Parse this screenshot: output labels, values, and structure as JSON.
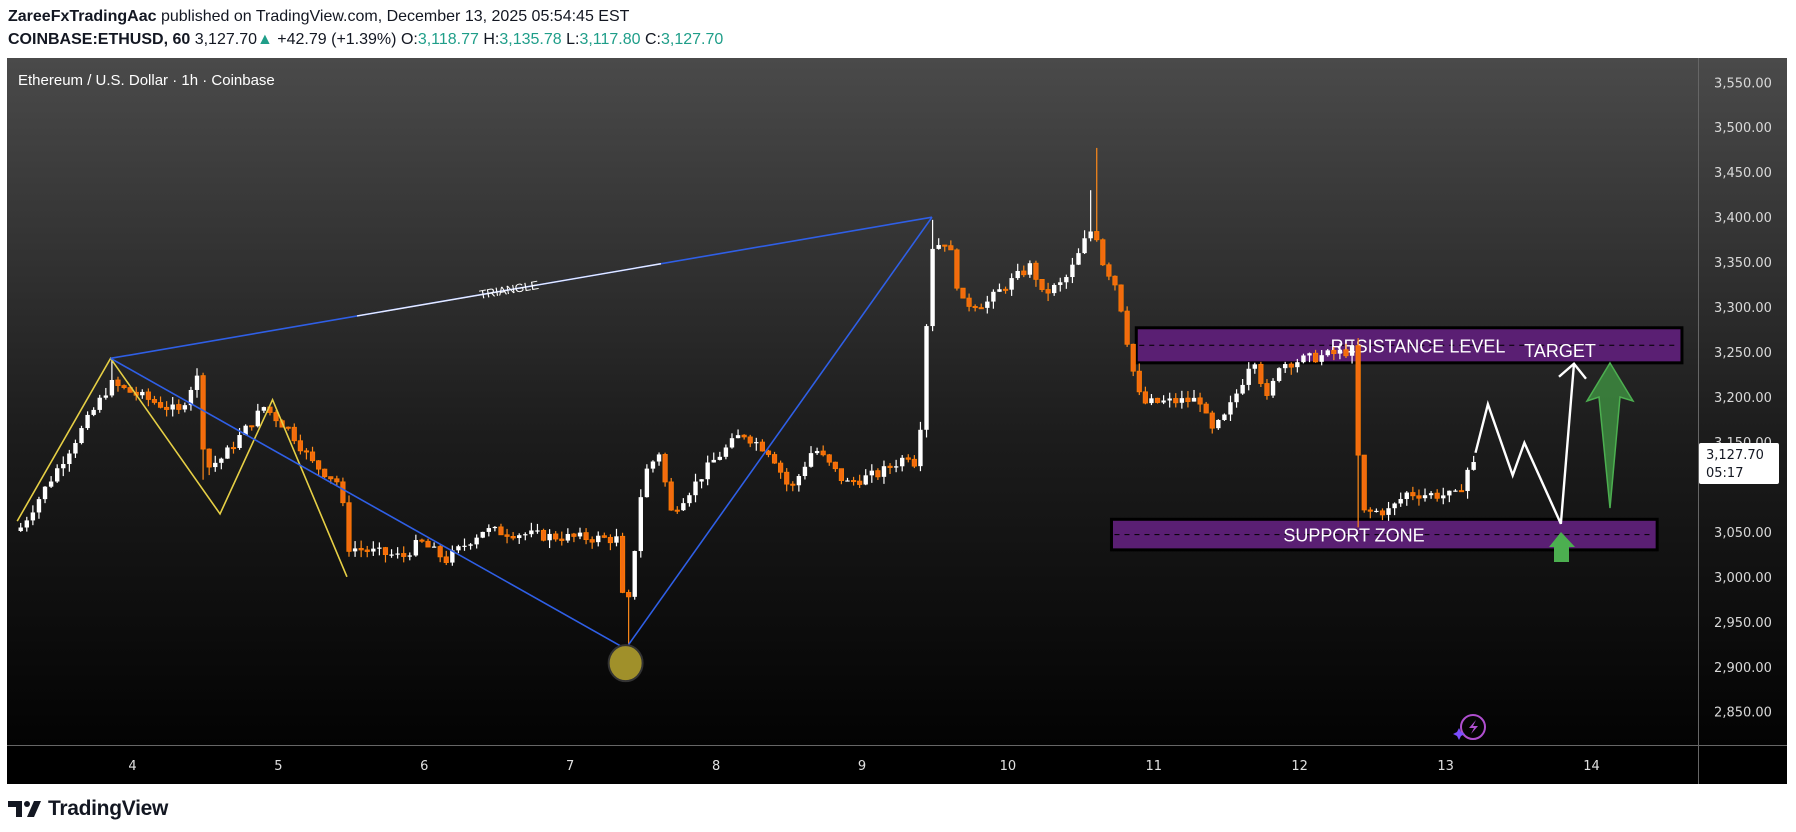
{
  "header": {
    "author": "ZareeFxTradingAac",
    "published_text": "published on TradingView.com, December 13, 2025 05:54:45 EST",
    "symbol": "COINBASE:ETHUSD, 60",
    "last": "3,127.70",
    "change": "+42.79 (+1.39%)",
    "o_label": "O:",
    "o": "3,118.77",
    "h_label": "H:",
    "h": "3,135.78",
    "l_label": "L:",
    "l": "3,117.80",
    "c_label": "C:",
    "c": "3,127.70"
  },
  "chart": {
    "title": "Ethereum / U.S. Dollar · 1h · Coinbase",
    "price_ticks": [
      {
        "value": 3550,
        "label": "3,550.00"
      },
      {
        "value": 3500,
        "label": "3,500.00"
      },
      {
        "value": 3450,
        "label": "3,450.00"
      },
      {
        "value": 3400,
        "label": "3,400.00"
      },
      {
        "value": 3350,
        "label": "3,350.00"
      },
      {
        "value": 3300,
        "label": "3,300.00"
      },
      {
        "value": 3250,
        "label": "3,250.00"
      },
      {
        "value": 3200,
        "label": "3,200.00"
      },
      {
        "value": 3150,
        "label": "3,150.00"
      },
      {
        "value": 3050,
        "label": "3,050.00"
      },
      {
        "value": 3000,
        "label": "3,000.00"
      },
      {
        "value": 2950,
        "label": "2,950.00"
      },
      {
        "value": 2900,
        "label": "2,900.00"
      },
      {
        "value": 2850,
        "label": "2,850.00"
      }
    ],
    "time_ticks": [
      {
        "day": 4,
        "label": "4"
      },
      {
        "day": 5,
        "label": "5"
      },
      {
        "day": 6,
        "label": "6"
      },
      {
        "day": 7,
        "label": "7"
      },
      {
        "day": 8,
        "label": "8"
      },
      {
        "day": 9,
        "label": "9"
      },
      {
        "day": 10,
        "label": "10"
      },
      {
        "day": 11,
        "label": "11"
      },
      {
        "day": 12,
        "label": "12"
      },
      {
        "day": 13,
        "label": "13"
      },
      {
        "day": 14,
        "label": "14"
      }
    ],
    "last_price_value": 3127.7,
    "last_price_label": "3,127.70",
    "countdown": "05:17"
  },
  "chart_data": {
    "type": "candlestick",
    "interval": "1h",
    "xlim": [
      3.14,
      14.73
    ],
    "ylim": [
      2813,
      3577
    ],
    "grid": false,
    "price_path": [
      [
        3.234,
        3055
      ],
      [
        3.849,
        3215
      ],
      [
        4.32,
        3183
      ],
      [
        4.44,
        3225
      ],
      [
        4.5,
        3120
      ],
      [
        4.62,
        3133
      ],
      [
        4.9,
        3189
      ],
      [
        5.08,
        3163
      ],
      [
        5.23,
        3127
      ],
      [
        5.42,
        3104
      ],
      [
        5.48,
        3033
      ],
      [
        5.85,
        3022
      ],
      [
        5.97,
        3039
      ],
      [
        6.15,
        3019
      ],
      [
        6.4,
        3052
      ],
      [
        6.86,
        3045
      ],
      [
        7.32,
        3042
      ],
      [
        7.38,
        2944
      ],
      [
        7.5,
        3113
      ],
      [
        7.62,
        3141
      ],
      [
        7.68,
        3070
      ],
      [
        7.84,
        3100
      ],
      [
        7.97,
        3127
      ],
      [
        8.18,
        3160
      ],
      [
        8.38,
        3138
      ],
      [
        8.51,
        3095
      ],
      [
        8.67,
        3144
      ],
      [
        8.89,
        3104
      ],
      [
        9.12,
        3115
      ],
      [
        9.34,
        3138
      ],
      [
        9.38,
        3117
      ],
      [
        9.43,
        3244
      ],
      [
        9.47,
        3367
      ],
      [
        9.59,
        3374
      ],
      [
        9.68,
        3304
      ],
      [
        9.85,
        3304
      ],
      [
        9.97,
        3322
      ],
      [
        10.18,
        3349
      ],
      [
        10.21,
        3312
      ],
      [
        10.38,
        3327
      ],
      [
        10.46,
        3349
      ],
      [
        10.55,
        3382
      ],
      [
        10.6,
        3389
      ],
      [
        10.63,
        3356
      ],
      [
        10.75,
        3322
      ],
      [
        10.8,
        3278
      ],
      [
        10.88,
        3211
      ],
      [
        10.92,
        3193
      ],
      [
        11.32,
        3197
      ],
      [
        11.39,
        3160
      ],
      [
        11.49,
        3178
      ],
      [
        11.62,
        3222
      ],
      [
        11.68,
        3249
      ],
      [
        11.79,
        3189
      ],
      [
        11.84,
        3236
      ],
      [
        12.36,
        3252
      ],
      [
        12.37,
        3232
      ],
      [
        12.42,
        3071
      ],
      [
        12.62,
        3074
      ],
      [
        12.73,
        3093
      ],
      [
        13.1,
        3090
      ],
      [
        13.12,
        3115
      ],
      [
        13.21,
        3127.7
      ]
    ],
    "wick_extremes": [
      [
        3.85,
        3241,
        "high"
      ],
      [
        4.44,
        3232,
        "high"
      ],
      [
        4.5,
        3108,
        "low"
      ],
      [
        7.38,
        2911,
        "low"
      ],
      [
        9.47,
        3397,
        "high"
      ],
      [
        10.55,
        3430,
        "high"
      ],
      [
        10.6,
        3477,
        "high"
      ],
      [
        12.42,
        3055,
        "low"
      ]
    ]
  },
  "annotations": {
    "triangle_label": "TRIANGLE",
    "triangle_points": [
      [
        3.85,
        3243
      ],
      [
        9.48,
        3400
      ],
      [
        7.38,
        2920
      ]
    ],
    "zigzag_points": [
      [
        3.21,
        3062
      ],
      [
        3.85,
        3243
      ],
      [
        4.6,
        3070
      ],
      [
        4.96,
        3197
      ],
      [
        5.47,
        3000
      ]
    ],
    "low_marker": [
      7.38,
      2904
    ],
    "resistance": {
      "label": "RESISTANCE LEVEL",
      "range": [
        3238,
        3277
      ],
      "days": [
        10.88,
        14.62
      ]
    },
    "support": {
      "label": "SUPPORT ZONE",
      "range": [
        3030,
        3064
      ],
      "days": [
        10.71,
        14.45
      ]
    },
    "target_label": "TARGET",
    "projection_path": [
      [
        13.205,
        3138
      ],
      [
        13.29,
        3192
      ],
      [
        13.46,
        3113
      ],
      [
        13.54,
        3149
      ],
      [
        13.79,
        3059
      ],
      [
        13.88,
        3237
      ]
    ]
  },
  "colors": {
    "up": "#ffffff",
    "down": "#f26b0f",
    "triangle": "#2f5fe6",
    "zigzag": "#e6cf45",
    "zone": "#5a1f73",
    "arrow": "#4caf50",
    "marker": "#a0902a",
    "header_value": "#1f9e89"
  },
  "branding": {
    "name": "TradingView"
  }
}
